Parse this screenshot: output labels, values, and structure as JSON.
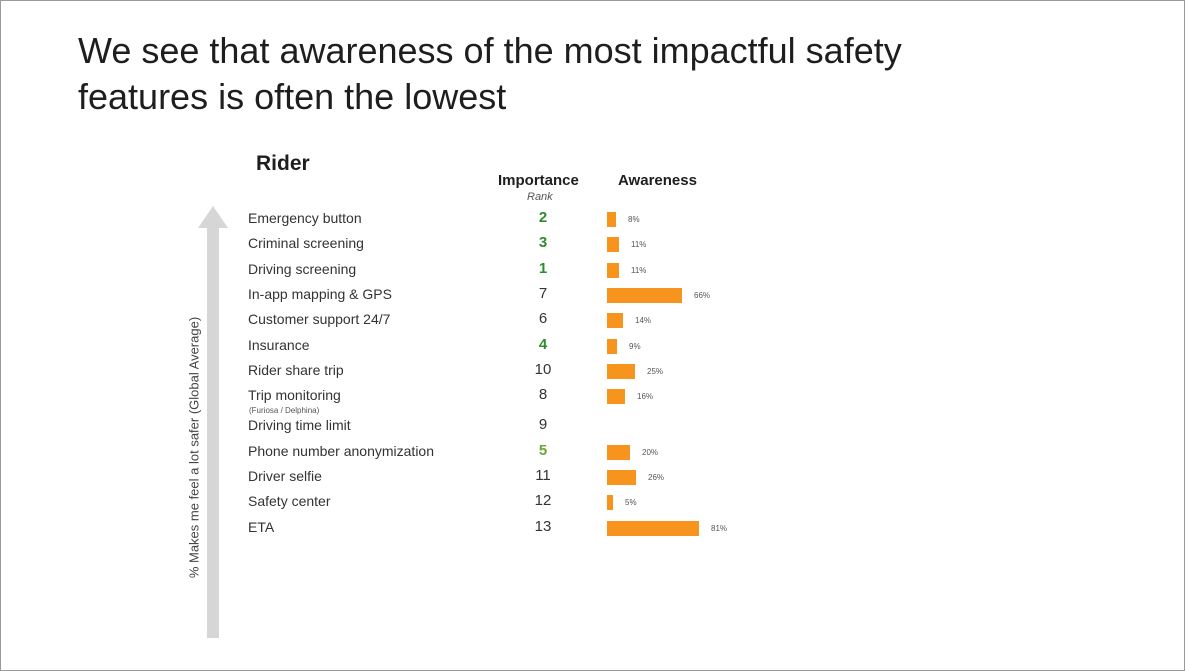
{
  "slide": {
    "title": "We see that awareness of the most impactful safety features is often the lowest",
    "section": "Rider",
    "axis_label": "% Makes me feel a lot safer (Global Average)",
    "columns": {
      "importance": "Importance",
      "importance_sub": "Rank",
      "awareness": "Awareness"
    }
  },
  "colors": {
    "bar": "#f7941d",
    "rank_top": "#2e8b2e",
    "rank_top_light": "#6aa832",
    "arrow": "#d6d6d6"
  },
  "chart_data": {
    "type": "bar",
    "title": "Rider",
    "xlabel": "Awareness",
    "ylabel": "% Makes me feel a lot safer (Global Average)",
    "unit": "%",
    "xlim": [
      0,
      100
    ],
    "categories": [
      "Emergency button",
      "Criminal screening",
      "Driving screening",
      "In-app mapping & GPS",
      "Customer support 24/7",
      "Insurance",
      "Rider share trip",
      "Trip monitoring",
      "Driving time limit",
      "Phone number anonymization",
      "Driver selfie",
      "Safety center",
      "ETA"
    ],
    "category_notes": [
      "",
      "",
      "",
      "",
      "",
      "",
      "",
      "(Furiosa / Delphina)",
      "",
      "",
      "",
      "",
      ""
    ],
    "importance_rank": [
      2,
      3,
      1,
      7,
      6,
      4,
      10,
      8,
      9,
      5,
      11,
      12,
      13
    ],
    "awareness_values": [
      8,
      11,
      11,
      66,
      14,
      9,
      25,
      16,
      null,
      20,
      26,
      5,
      81
    ],
    "awareness_labels": [
      "8%",
      "11%",
      "11%",
      "66%",
      "14%",
      "9%",
      "25%",
      "16%",
      "",
      "20%",
      "26%",
      "5%",
      "81%"
    ],
    "rank_style": [
      "top",
      "top",
      "top",
      "",
      "",
      "top",
      "",
      "",
      "",
      "top-light",
      "",
      "",
      ""
    ]
  }
}
